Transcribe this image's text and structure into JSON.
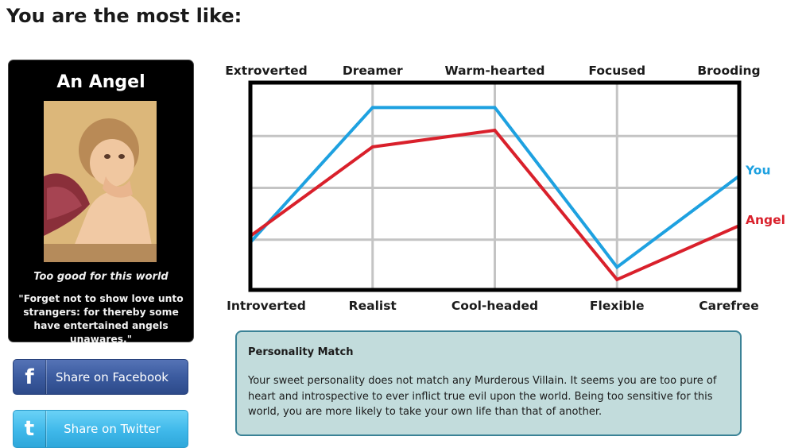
{
  "page": {
    "title": "You are the most like:"
  },
  "card": {
    "title": "An Angel",
    "tagline": "Too good for this world",
    "quote": "\"Forget not to show love unto strangers: for thereby some have entertained angels unawares.\""
  },
  "share": {
    "facebook": {
      "icon": "f",
      "label": "Share on Facebook",
      "color": "#3b5b9f"
    },
    "twitter": {
      "icon": "t",
      "label": "Share on Twitter",
      "color": "#3fb8ea"
    }
  },
  "chart_data": {
    "type": "line",
    "top_labels": [
      "Extroverted",
      "Dreamer",
      "Warm-hearted",
      "Focused",
      "Brooding"
    ],
    "bottom_labels": [
      "Introverted",
      "Realist",
      "Cool-headed",
      "Flexible",
      "Carefree"
    ],
    "ylim": [
      0,
      100
    ],
    "grid": true,
    "series": [
      {
        "name": "You",
        "color": "#1ea1e0",
        "values": [
          23,
          88,
          88,
          11,
          55
        ]
      },
      {
        "name": "Angel",
        "color": "#d9202b",
        "values": [
          26,
          69,
          77,
          5,
          31
        ]
      }
    ]
  },
  "match": {
    "heading": "Personality Match",
    "text": "Your sweet personality does not match any Murderous Villain. It seems you are too pure of heart and introspective to ever inflict true evil upon the world. Being too sensitive for this world, you are more likely to take your own life than that of another."
  }
}
